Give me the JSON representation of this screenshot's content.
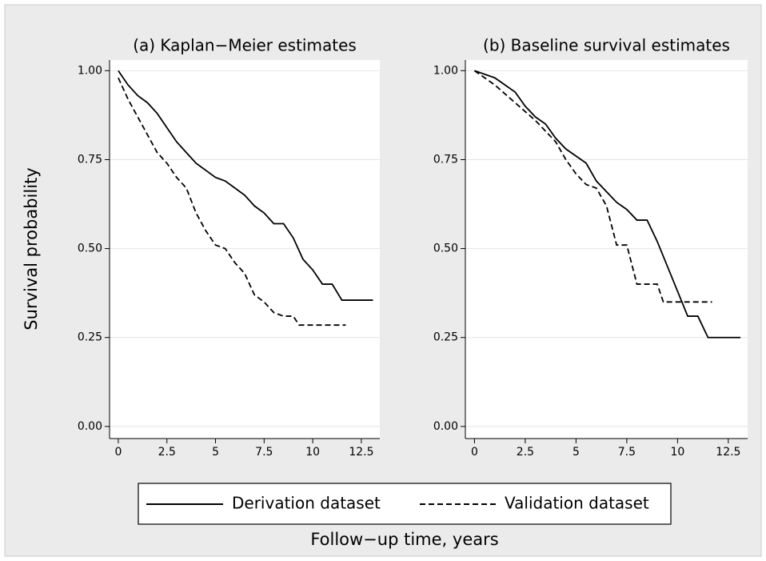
{
  "ylabel": "Survival probability",
  "xlabel": "Follow−up time, years",
  "chart_data": [
    {
      "type": "line",
      "title": "(a) Kaplan−Meier estimates",
      "xlim": [
        -0.45,
        13.45
      ],
      "ylim": [
        -0.034,
        1.03
      ],
      "xticks": [
        0,
        2.5,
        5,
        7.5,
        10,
        12.5
      ],
      "yticks": [
        {
          "value": 0,
          "label": "0.00"
        },
        {
          "value": 0.25,
          "label": "0.25"
        },
        {
          "value": 0.5,
          "label": "0.50"
        },
        {
          "value": 0.75,
          "label": "0.75"
        },
        {
          "value": 1,
          "label": "1.00"
        }
      ],
      "grid": true,
      "series": [
        {
          "name": "Derivation dataset",
          "color": "#000000",
          "line_style": "solid",
          "x": [
            0,
            0.5,
            1,
            1.5,
            2,
            2.5,
            3,
            3.5,
            4,
            4.5,
            5,
            5.5,
            6,
            6.5,
            7,
            7.5,
            8,
            8.5,
            9,
            9.5,
            10,
            10.5,
            11,
            11.5,
            13.1
          ],
          "values": [
            1.0,
            0.96,
            0.93,
            0.91,
            0.88,
            0.84,
            0.8,
            0.77,
            0.74,
            0.72,
            0.7,
            0.69,
            0.67,
            0.65,
            0.62,
            0.6,
            0.57,
            0.57,
            0.53,
            0.47,
            0.44,
            0.4,
            0.4,
            0.355,
            0.355
          ]
        },
        {
          "name": "Validation dataset",
          "color": "#000000",
          "line_style": "dashed",
          "x": [
            0,
            0.5,
            1,
            1.5,
            2,
            2.5,
            3,
            3.5,
            4,
            4.5,
            5,
            5.5,
            6,
            6.5,
            7,
            7.5,
            8,
            8.5,
            9,
            9.3,
            11.7
          ],
          "values": [
            0.98,
            0.92,
            0.87,
            0.82,
            0.77,
            0.74,
            0.7,
            0.67,
            0.6,
            0.55,
            0.51,
            0.5,
            0.46,
            0.43,
            0.37,
            0.35,
            0.32,
            0.31,
            0.31,
            0.285,
            0.285
          ]
        }
      ]
    },
    {
      "type": "line",
      "title": "(b) Baseline survival estimates",
      "xlim": [
        -0.45,
        13.45
      ],
      "ylim": [
        -0.034,
        1.03
      ],
      "xticks": [
        0,
        2.5,
        5,
        7.5,
        10,
        12.5
      ],
      "yticks": [
        {
          "value": 0,
          "label": "0.00"
        },
        {
          "value": 0.25,
          "label": "0.25"
        },
        {
          "value": 0.5,
          "label": "0.50"
        },
        {
          "value": 0.75,
          "label": "0.75"
        },
        {
          "value": 1,
          "label": "1.00"
        }
      ],
      "grid": true,
      "series": [
        {
          "name": "Derivation dataset",
          "color": "#000000",
          "line_style": "solid",
          "x": [
            0,
            1,
            2,
            2.5,
            3,
            3.5,
            4,
            4.5,
            5,
            5.5,
            6,
            6.5,
            7,
            7.5,
            8,
            8.5,
            9,
            9.5,
            10,
            10.5,
            11,
            11.5,
            13.1
          ],
          "values": [
            1.0,
            0.98,
            0.94,
            0.9,
            0.87,
            0.85,
            0.81,
            0.78,
            0.76,
            0.74,
            0.69,
            0.66,
            0.63,
            0.61,
            0.58,
            0.58,
            0.52,
            0.45,
            0.38,
            0.31,
            0.31,
            0.25,
            0.25
          ]
        },
        {
          "name": "Validation dataset",
          "color": "#000000",
          "line_style": "dashed",
          "x": [
            0,
            1,
            2,
            3,
            4,
            4.5,
            5,
            5.5,
            6,
            6.5,
            7,
            7.5,
            8,
            9,
            9.3,
            11.7
          ],
          "values": [
            1.0,
            0.96,
            0.91,
            0.86,
            0.8,
            0.75,
            0.71,
            0.68,
            0.67,
            0.62,
            0.51,
            0.51,
            0.4,
            0.4,
            0.35,
            0.35
          ]
        }
      ]
    }
  ]
}
